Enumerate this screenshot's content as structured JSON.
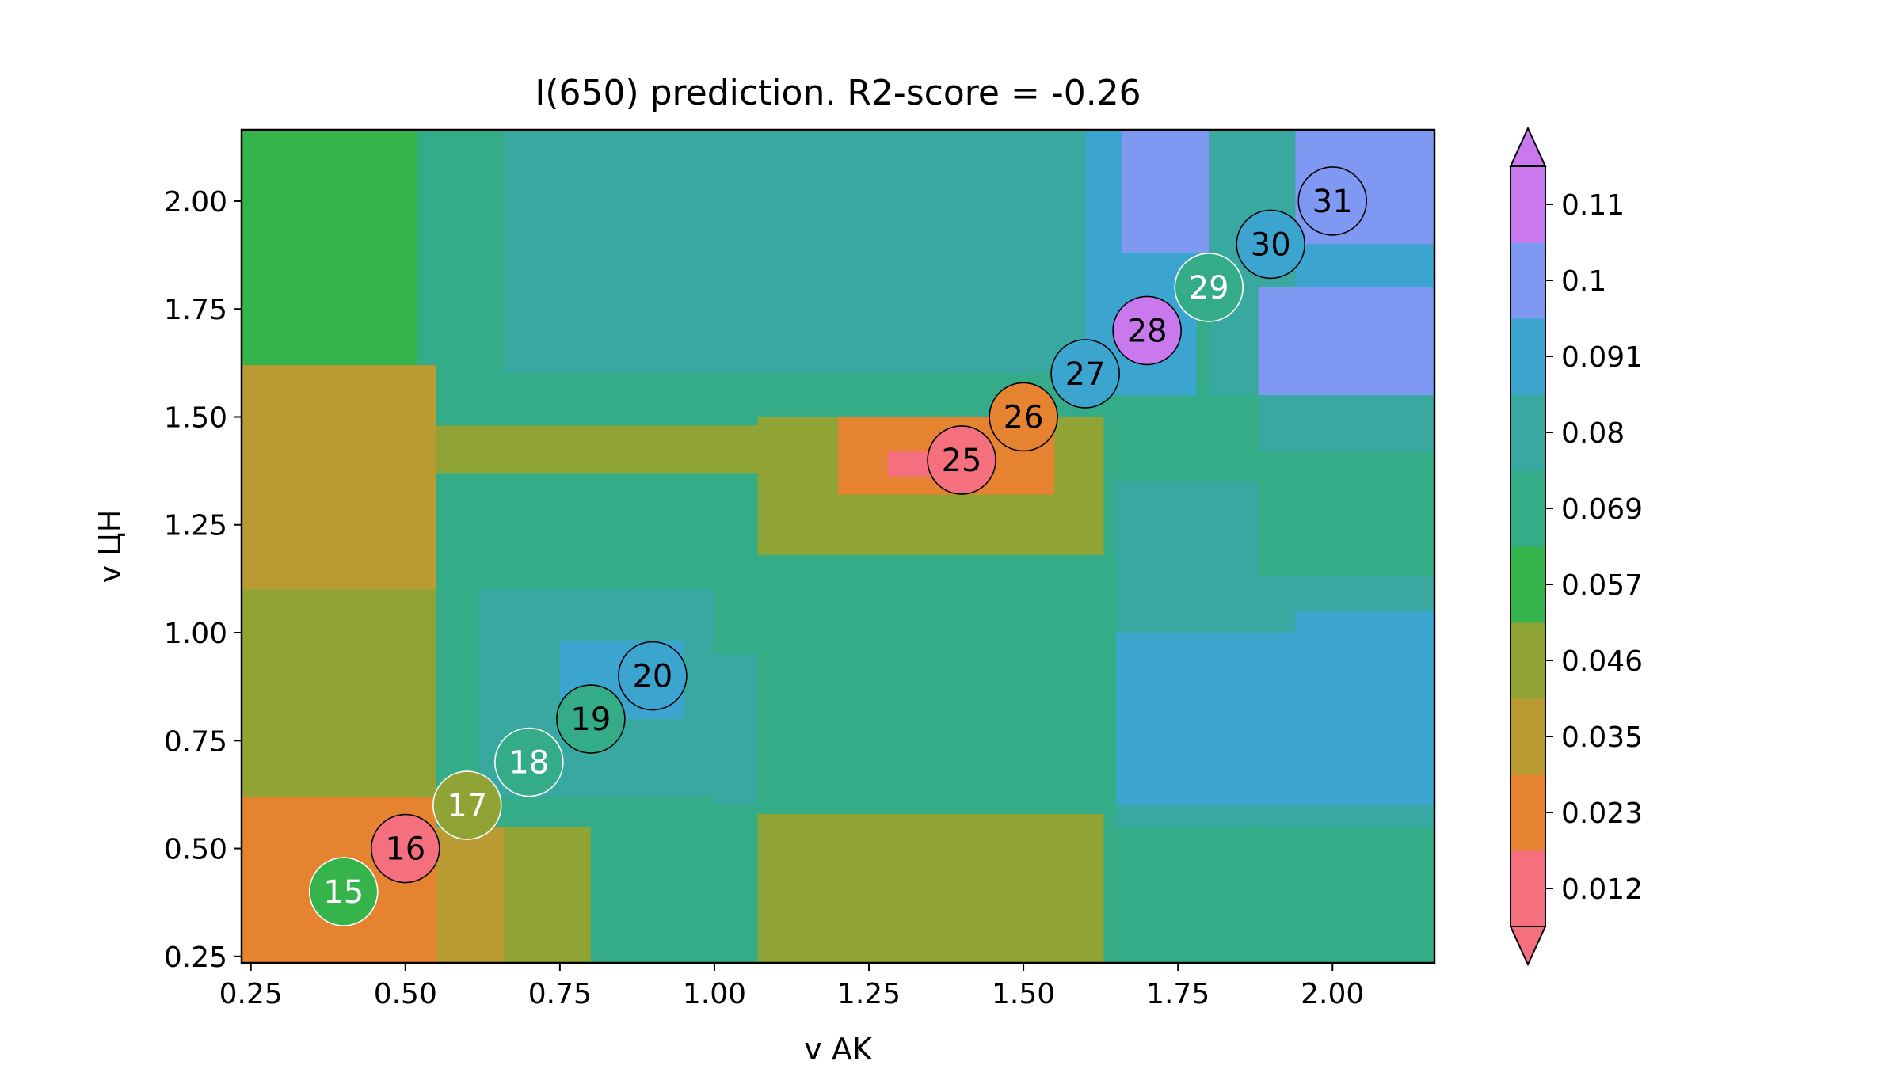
{
  "chart_data": {
    "type": "heatmap",
    "title": "I(650) prediction. R2-score = -0.26",
    "xlabel": "v AK",
    "ylabel": "v ЦН",
    "xlim": [
      0.235,
      2.165
    ],
    "ylim": [
      0.235,
      2.165
    ],
    "x_ticks": [
      "0.25",
      "0.50",
      "0.75",
      "1.00",
      "1.25",
      "1.50",
      "1.75",
      "2.00"
    ],
    "y_ticks": [
      "0.25",
      "0.50",
      "0.75",
      "1.00",
      "1.25",
      "1.50",
      "1.75",
      "2.00"
    ],
    "grid": false,
    "colorbar": {
      "ticks": [
        "0.012",
        "0.023",
        "0.035",
        "0.046",
        "0.057",
        "0.069",
        "0.08",
        "0.091",
        "0.1",
        "0.11"
      ],
      "colors": [
        "#f5707e",
        "#e58331",
        "#ba9a33",
        "#90a435",
        "#34b44a",
        "#35ac88",
        "#38a8a0",
        "#3ba4cf",
        "#7f98f1",
        "#ca78ed"
      ],
      "extend": "both"
    },
    "regions": [
      {
        "x": [
          0.235,
          2.165
        ],
        "y": [
          0.235,
          2.165
        ],
        "level": 5
      },
      {
        "x": [
          0.235,
          0.52
        ],
        "y": [
          1.62,
          2.165
        ],
        "level": 4
      },
      {
        "x": [
          0.52,
          0.66
        ],
        "y": [
          1.62,
          2.165
        ],
        "level": 5
      },
      {
        "x": [
          0.66,
          1.6
        ],
        "y": [
          1.6,
          2.165
        ],
        "level": 6
      },
      {
        "x": [
          1.6,
          1.78
        ],
        "y": [
          1.55,
          2.165
        ],
        "level": 7
      },
      {
        "x": [
          1.66,
          1.8
        ],
        "y": [
          1.88,
          2.165
        ],
        "level": 8
      },
      {
        "x": [
          1.8,
          1.94
        ],
        "y": [
          1.55,
          2.165
        ],
        "level": 6
      },
      {
        "x": [
          1.94,
          2.165
        ],
        "y": [
          1.9,
          2.165
        ],
        "level": 8
      },
      {
        "x": [
          1.94,
          2.165
        ],
        "y": [
          1.55,
          1.9
        ],
        "level": 7
      },
      {
        "x": [
          1.88,
          2.165
        ],
        "y": [
          1.55,
          1.8
        ],
        "level": 8
      },
      {
        "x": [
          0.235,
          0.55
        ],
        "y": [
          1.36,
          1.62
        ],
        "level": 2
      },
      {
        "x": [
          0.235,
          0.55
        ],
        "y": [
          1.1,
          1.36
        ],
        "level": 2
      },
      {
        "x": [
          0.55,
          1.08
        ],
        "y": [
          1.37,
          1.48
        ],
        "level": 3
      },
      {
        "x": [
          0.235,
          0.55
        ],
        "y": [
          0.62,
          1.1
        ],
        "level": 3
      },
      {
        "x": [
          0.235,
          0.55
        ],
        "y": [
          0.235,
          0.62
        ],
        "level": 1
      },
      {
        "x": [
          0.55,
          0.66
        ],
        "y": [
          0.235,
          0.55
        ],
        "level": 2
      },
      {
        "x": [
          0.66,
          0.8
        ],
        "y": [
          0.235,
          0.55
        ],
        "level": 3
      },
      {
        "x": [
          1.07,
          1.63
        ],
        "y": [
          0.235,
          0.58
        ],
        "level": 3
      },
      {
        "x": [
          1.07,
          1.63
        ],
        "y": [
          1.18,
          1.5
        ],
        "level": 3
      },
      {
        "x": [
          1.2,
          1.55
        ],
        "y": [
          1.32,
          1.5
        ],
        "level": 1
      },
      {
        "x": [
          1.28,
          1.44
        ],
        "y": [
          1.36,
          1.42
        ],
        "level": 0
      },
      {
        "x": [
          0.62,
          1.0
        ],
        "y": [
          0.62,
          1.1
        ],
        "level": 6
      },
      {
        "x": [
          0.75,
          0.95
        ],
        "y": [
          0.8,
          0.98
        ],
        "level": 7
      },
      {
        "x": [
          1.0,
          1.07
        ],
        "y": [
          0.6,
          0.95
        ],
        "level": 6
      },
      {
        "x": [
          1.65,
          1.88
        ],
        "y": [
          0.55,
          1.35
        ],
        "level": 6
      },
      {
        "x": [
          1.88,
          2.165
        ],
        "y": [
          1.42,
          1.55
        ],
        "level": 6
      },
      {
        "x": [
          1.88,
          2.165
        ],
        "y": [
          0.55,
          1.13
        ],
        "level": 6
      },
      {
        "x": [
          1.94,
          2.165
        ],
        "y": [
          0.6,
          1.05
        ],
        "level": 7
      },
      {
        "x": [
          1.65,
          1.94
        ],
        "y": [
          0.6,
          1.0
        ],
        "level": 7
      }
    ],
    "points": [
      {
        "label": "15",
        "x": 0.4,
        "y": 0.4,
        "level": 4
      },
      {
        "label": "16",
        "x": 0.5,
        "y": 0.5,
        "level": 0
      },
      {
        "label": "17",
        "x": 0.6,
        "y": 0.6,
        "level": 3
      },
      {
        "label": "18",
        "x": 0.7,
        "y": 0.7,
        "level": 5
      },
      {
        "label": "19",
        "x": 0.8,
        "y": 0.8,
        "level": 5
      },
      {
        "label": "20",
        "x": 0.9,
        "y": 0.9,
        "level": 7
      },
      {
        "label": "25",
        "x": 1.4,
        "y": 1.4,
        "level": 0
      },
      {
        "label": "26",
        "x": 1.5,
        "y": 1.5,
        "level": 1
      },
      {
        "label": "27",
        "x": 1.6,
        "y": 1.6,
        "level": 7
      },
      {
        "label": "28",
        "x": 1.7,
        "y": 1.7,
        "level": 9
      },
      {
        "label": "29",
        "x": 1.8,
        "y": 1.8,
        "level": 5
      },
      {
        "label": "30",
        "x": 1.9,
        "y": 1.9,
        "level": 7
      },
      {
        "label": "31",
        "x": 2.0,
        "y": 2.0,
        "level": 8
      }
    ],
    "white_label_points": [
      "15",
      "17",
      "18",
      "29"
    ]
  }
}
